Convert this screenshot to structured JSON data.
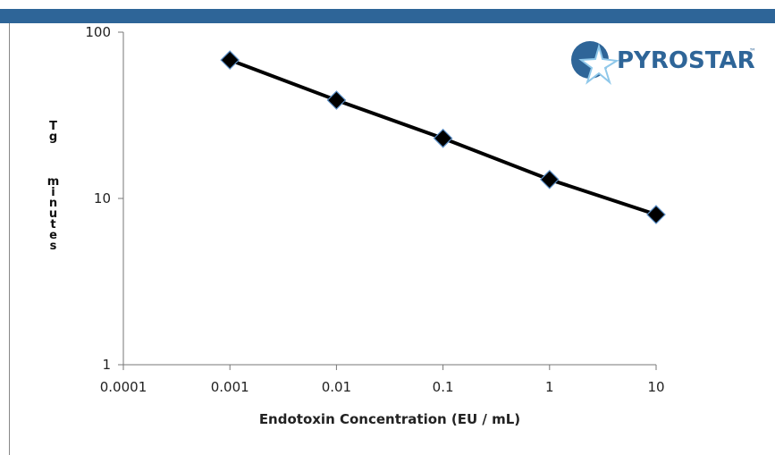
{
  "chart_data": {
    "type": "line",
    "x_label": "Endotoxin Concentration (EU / mL)",
    "y_label_lines": [
      "Tg",
      "minutes"
    ],
    "logo": "PYROSTAR",
    "logo_mark": "™",
    "x": [
      0.001,
      0.01,
      0.1,
      1,
      10
    ],
    "series": [
      {
        "color": "#000000",
        "values": [
          68,
          39,
          23,
          13,
          8
        ]
      }
    ],
    "xlim": [
      0.0001,
      10
    ],
    "xticks": [
      0.0001,
      0.001,
      0.01,
      0.1,
      1,
      10
    ],
    "ylim": [
      1,
      100
    ],
    "yticks": [
      1,
      10,
      100
    ],
    "xscale": "log",
    "yscale": "log"
  }
}
